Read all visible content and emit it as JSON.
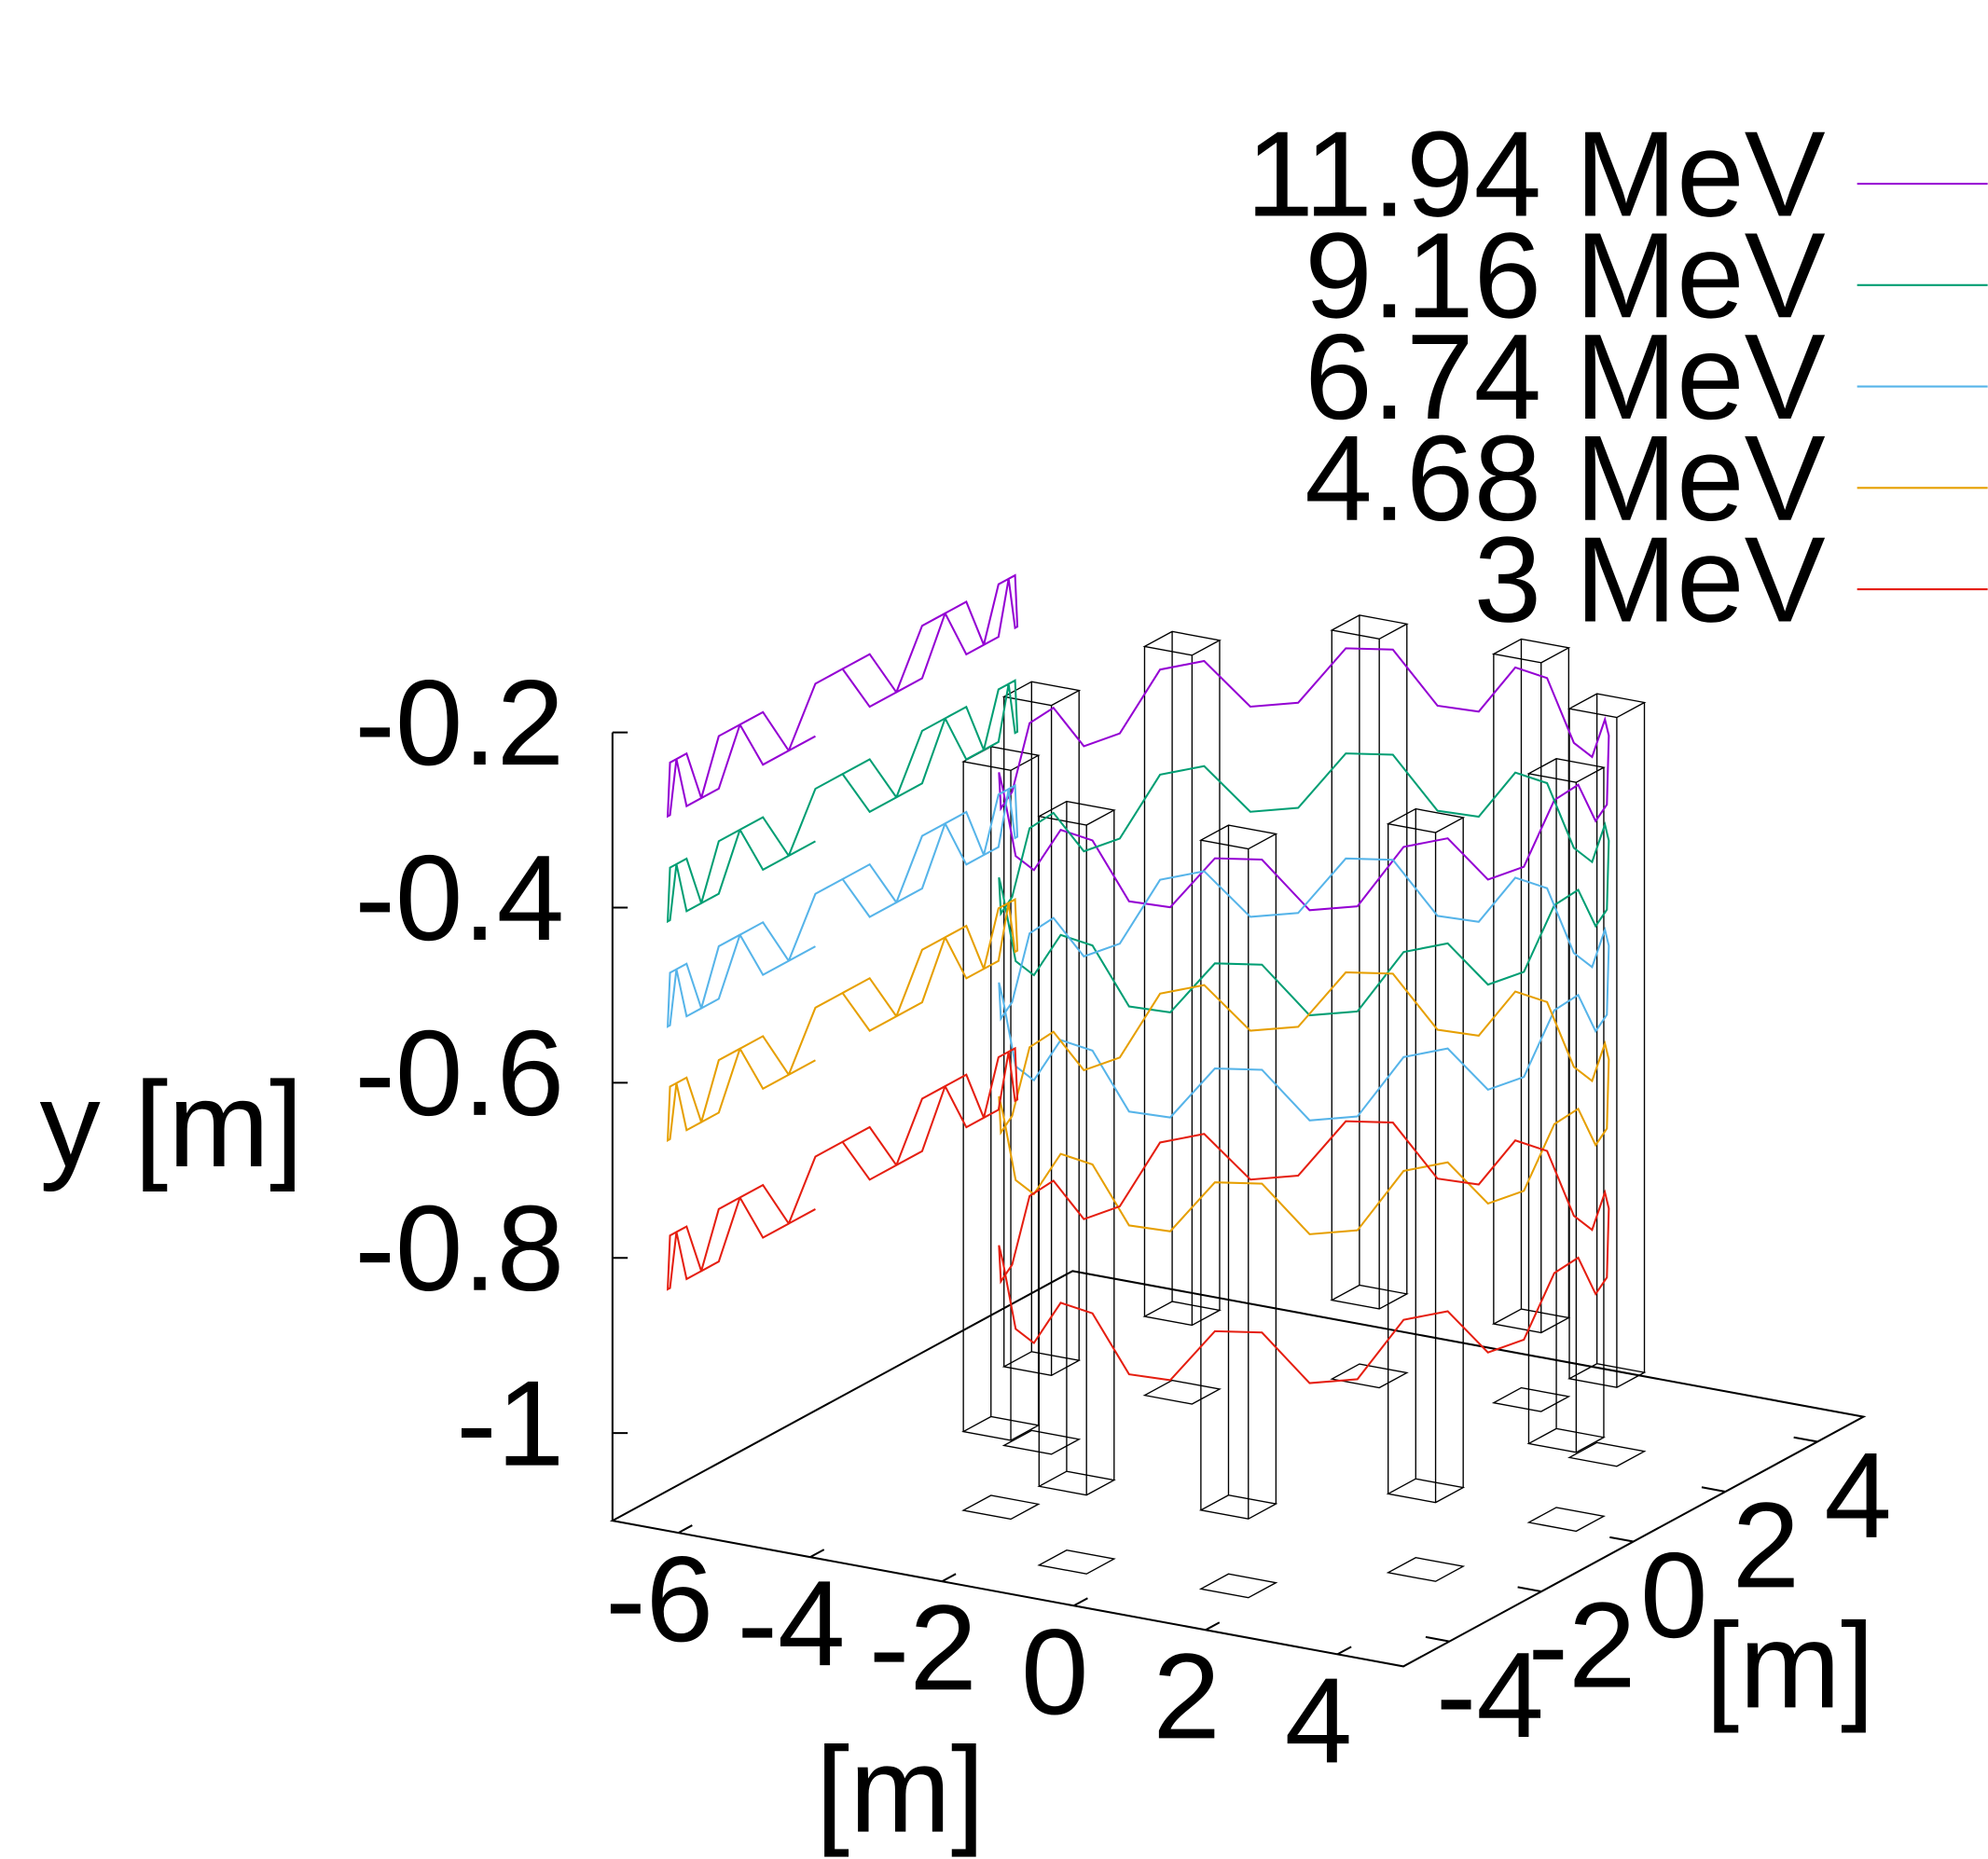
{
  "chart_data": {
    "type": "line3d",
    "ylabel": "y [m]",
    "xlabel": "[m]",
    "zlabel": "[m]",
    "xlim": [
      -7,
      5
    ],
    "xticks": [
      -6,
      -4,
      -2,
      0,
      2,
      4
    ],
    "zlim": [
      -5,
      5
    ],
    "zticks": [
      -4,
      -2,
      0,
      2,
      4
    ],
    "ylim": [
      -1.1,
      -0.2
    ],
    "yticks": [
      -1,
      -0.8,
      -0.6,
      -0.4,
      -0.2
    ],
    "legend": "top-right",
    "x": [
      3.8,
      3.75,
      3.61,
      3.39,
      3.07,
      2.69,
      2.23,
      1.73,
      1.17,
      0.59,
      0,
      -0.59,
      -1.17,
      -1.73,
      -2.23,
      -2.69,
      -3.07,
      -3.39,
      -3.61,
      -3.75,
      -3.8,
      -3.75,
      -3.61,
      -3.39,
      -3.07,
      -2.69,
      -2.23,
      -1.73,
      -1.17,
      -0.59,
      0,
      0.59,
      1.17,
      1.73,
      2.23,
      2.69,
      3.07,
      3.39,
      3.61,
      3.75
    ],
    "z": [
      0,
      0.59,
      1.17,
      1.73,
      2.23,
      2.69,
      3.07,
      3.39,
      3.61,
      3.75,
      3.8,
      3.75,
      3.61,
      3.39,
      3.07,
      2.69,
      2.23,
      1.73,
      1.17,
      0.59,
      0,
      -0.59,
      -1.17,
      -1.73,
      -2.23,
      -2.69,
      -3.07,
      -3.39,
      -3.61,
      -3.75,
      -3.8,
      -3.75,
      -3.61,
      -3.39,
      -3.07,
      -2.69,
      -2.23,
      -1.73,
      -1.17,
      -0.59
    ],
    "series": [
      {
        "name": "11.94 MeV",
        "color": "#9400d3",
        "values": [
          -0.27,
          -0.27,
          -0.33,
          -0.33,
          -0.27,
          -0.27,
          -0.33,
          -0.33,
          -0.27,
          -0.27,
          -0.33,
          -0.33,
          -0.27,
          -0.27,
          -0.33,
          -0.33,
          -0.27,
          -0.27,
          -0.33,
          -0.33,
          -0.27,
          -0.27,
          -0.33,
          -0.33,
          -0.27,
          -0.27,
          -0.33,
          -0.33,
          -0.27,
          -0.27,
          -0.33,
          -0.33,
          -0.27,
          -0.27,
          -0.33,
          -0.33,
          -0.27,
          -0.27,
          -0.33,
          -0.33
        ]
      },
      {
        "name": "9.16 MeV",
        "color": "#009e73",
        "values": [
          -0.39,
          -0.39,
          -0.45,
          -0.45,
          -0.39,
          -0.39,
          -0.45,
          -0.45,
          -0.39,
          -0.39,
          -0.45,
          -0.45,
          -0.39,
          -0.39,
          -0.45,
          -0.45,
          -0.39,
          -0.39,
          -0.45,
          -0.45,
          -0.39,
          -0.39,
          -0.45,
          -0.45,
          -0.39,
          -0.39,
          -0.45,
          -0.45,
          -0.39,
          -0.39,
          -0.45,
          -0.45,
          -0.39,
          -0.39,
          -0.45,
          -0.45,
          -0.39,
          -0.39,
          -0.45,
          -0.45
        ]
      },
      {
        "name": "6.74 MeV",
        "color": "#56b4e9",
        "values": [
          -0.51,
          -0.51,
          -0.57,
          -0.57,
          -0.51,
          -0.51,
          -0.57,
          -0.57,
          -0.51,
          -0.51,
          -0.57,
          -0.57,
          -0.51,
          -0.51,
          -0.57,
          -0.57,
          -0.51,
          -0.51,
          -0.57,
          -0.57,
          -0.51,
          -0.51,
          -0.57,
          -0.57,
          -0.51,
          -0.51,
          -0.57,
          -0.57,
          -0.51,
          -0.51,
          -0.57,
          -0.57,
          -0.51,
          -0.51,
          -0.57,
          -0.57,
          -0.51,
          -0.51,
          -0.57,
          -0.57
        ]
      },
      {
        "name": "4.68 MeV",
        "color": "#e69f00",
        "values": [
          -0.64,
          -0.64,
          -0.7,
          -0.7,
          -0.64,
          -0.64,
          -0.7,
          -0.7,
          -0.64,
          -0.64,
          -0.7,
          -0.7,
          -0.64,
          -0.64,
          -0.7,
          -0.7,
          -0.64,
          -0.64,
          -0.7,
          -0.7,
          -0.64,
          -0.64,
          -0.7,
          -0.7,
          -0.64,
          -0.64,
          -0.7,
          -0.7,
          -0.64,
          -0.64,
          -0.7,
          -0.7,
          -0.64,
          -0.64,
          -0.7,
          -0.7,
          -0.64,
          -0.64,
          -0.7,
          -0.7
        ]
      },
      {
        "name": "3 MeV",
        "color": "#e51e10",
        "values": [
          -0.81,
          -0.81,
          -0.87,
          -0.87,
          -0.81,
          -0.81,
          -0.87,
          -0.87,
          -0.81,
          -0.81,
          -0.87,
          -0.87,
          -0.81,
          -0.81,
          -0.87,
          -0.87,
          -0.81,
          -0.81,
          -0.87,
          -0.87,
          -0.81,
          -0.81,
          -0.87,
          -0.87,
          -0.81,
          -0.81,
          -0.87,
          -0.87,
          -0.81,
          -0.81,
          -0.87,
          -0.87,
          -0.81,
          -0.81,
          -0.87,
          -0.87,
          -0.81,
          -0.81,
          -0.87,
          -0.87
        ]
      }
    ]
  }
}
